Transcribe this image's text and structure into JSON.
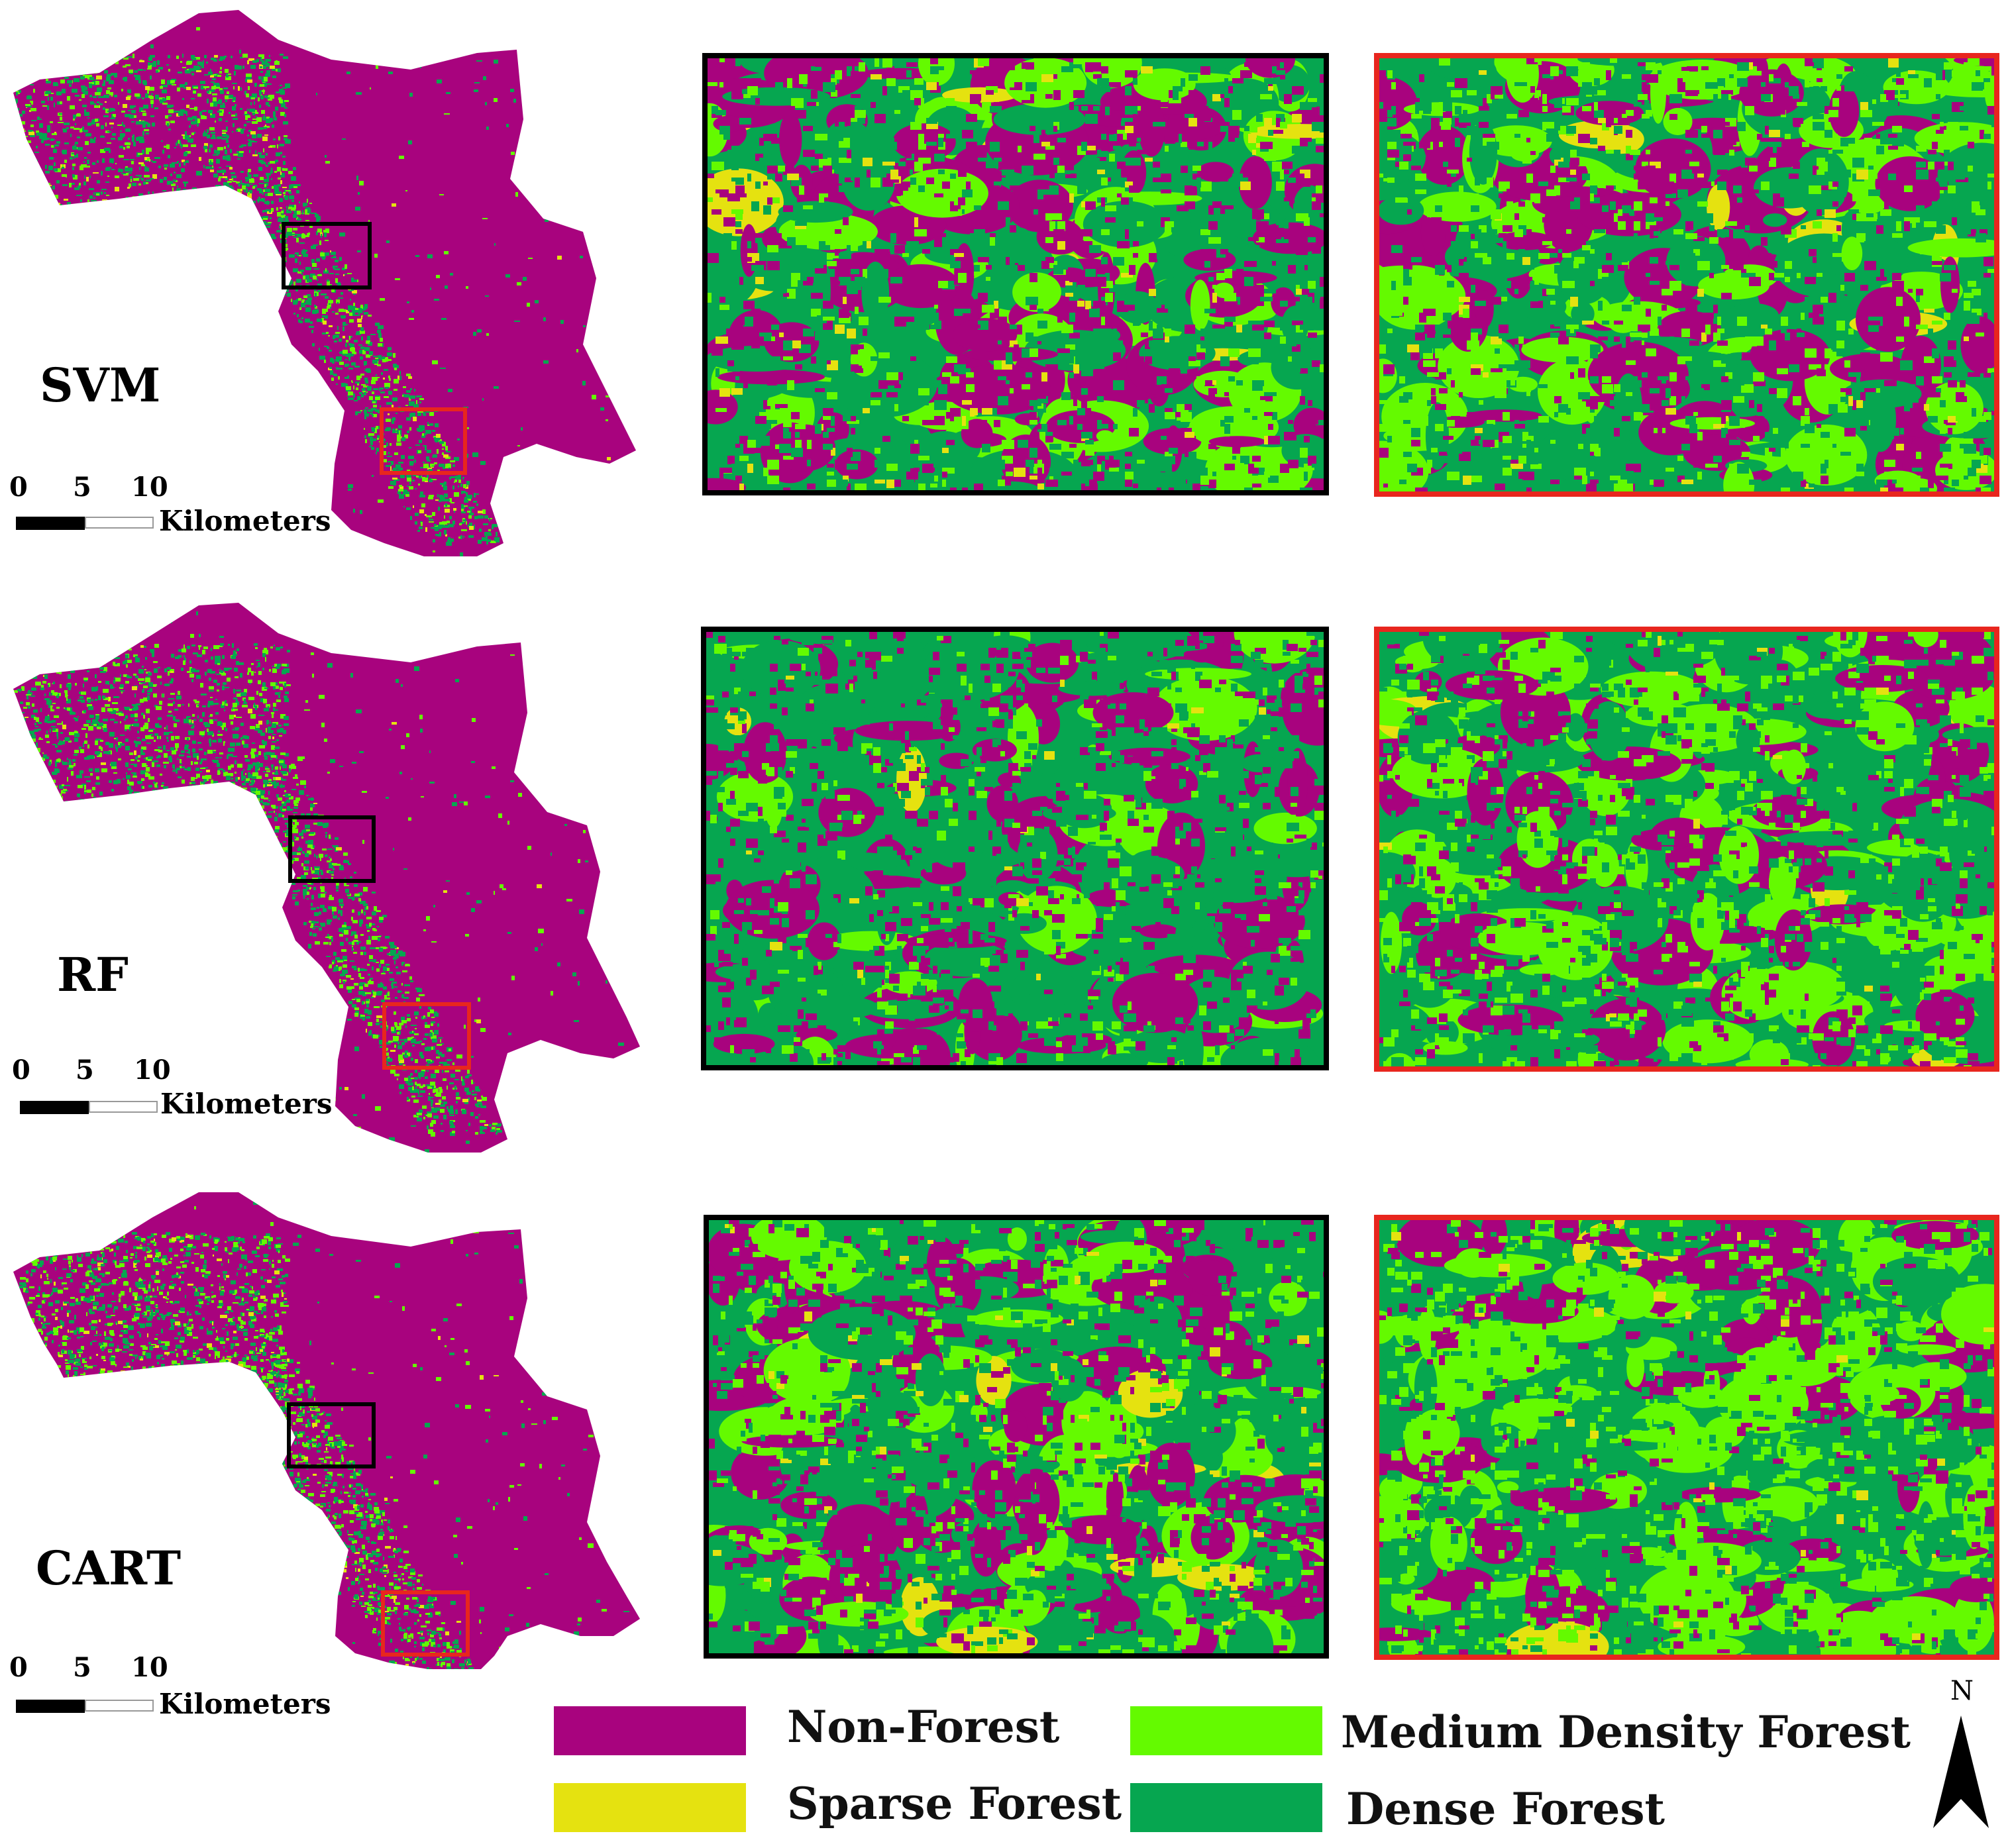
{
  "colors": {
    "non_forest": "#a8037e",
    "sparse_forest": "#e5e210",
    "medium_density_forest": "#64fa00",
    "dense_forest": "#06a650",
    "inset_black_border": "#000000",
    "inset_red_border": "#e8261e"
  },
  "panels": [
    {
      "method": "SVM"
    },
    {
      "method": "RF"
    },
    {
      "method": "CART"
    }
  ],
  "scale_bar": {
    "ticks": [
      "0",
      "5",
      "10"
    ],
    "unit": "Kilometers"
  },
  "legend": {
    "items": [
      {
        "label": "Non-Forest",
        "color_key": "non_forest"
      },
      {
        "label": "Sparse Forest",
        "color_key": "sparse_forest"
      },
      {
        "label": "Medium Density Forest",
        "color_key": "medium_density_forest"
      },
      {
        "label": "Dense Forest",
        "color_key": "dense_forest"
      }
    ]
  },
  "north_arrow": {
    "label": "N",
    "icon": "north-arrow-icon"
  }
}
